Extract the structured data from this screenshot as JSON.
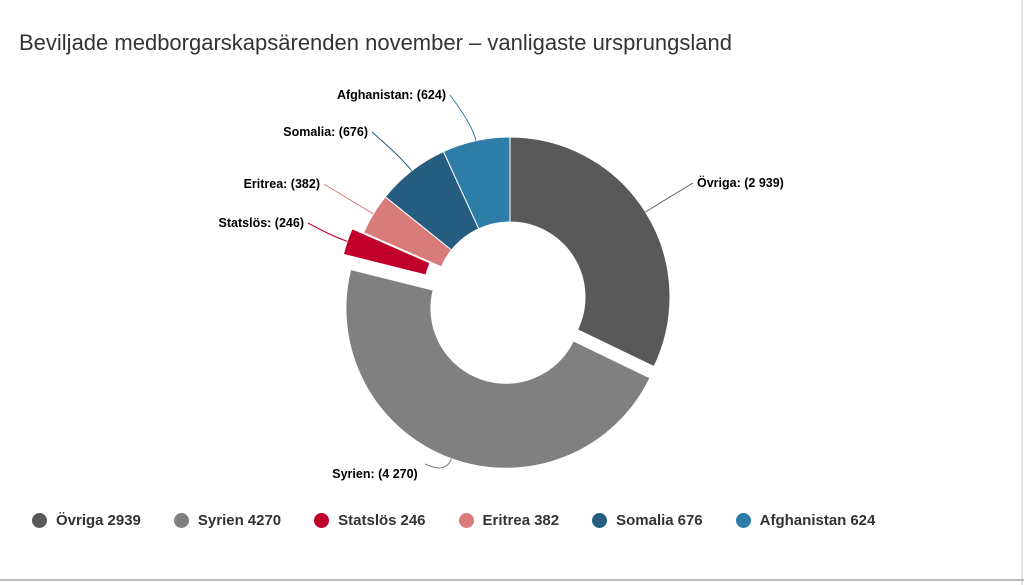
{
  "title": "Beviljade medborgarskapsärenden november – vanligaste ursprungsland",
  "chart_data": {
    "type": "pie",
    "donut": true,
    "title": "Beviljade medborgarskapsärenden november – vanligaste ursprungsland",
    "categories": [
      "Övriga",
      "Syrien",
      "Statslös",
      "Eritrea",
      "Somalia",
      "Afghanistan"
    ],
    "values": [
      2939,
      4270,
      246,
      382,
      676,
      624
    ],
    "data_labels": [
      "Övriga: (2 939)",
      "Syrien: (4 270)",
      "Statslös: (246)",
      "Eritrea: (382)",
      "Somalia: (676)",
      "Afghanistan: (624)"
    ],
    "colors": [
      "#595959",
      "#808080",
      "#c0002a",
      "#d97b7b",
      "#245d80",
      "#2e7ca8"
    ],
    "sliced": [
      "Syrien",
      "Statslös"
    ],
    "legend_position": "bottom"
  },
  "legend": [
    {
      "name": "Övriga",
      "value": "2939",
      "color": "#595959"
    },
    {
      "name": "Syrien",
      "value": "4270",
      "color": "#808080"
    },
    {
      "name": "Statslös",
      "value": "246",
      "color": "#c0002a"
    },
    {
      "name": "Eritrea",
      "value": "382",
      "color": "#d97b7b"
    },
    {
      "name": "Somalia",
      "value": "676",
      "color": "#245d80"
    },
    {
      "name": "Afghanistan",
      "value": "624",
      "color": "#2e7ca8"
    }
  ]
}
